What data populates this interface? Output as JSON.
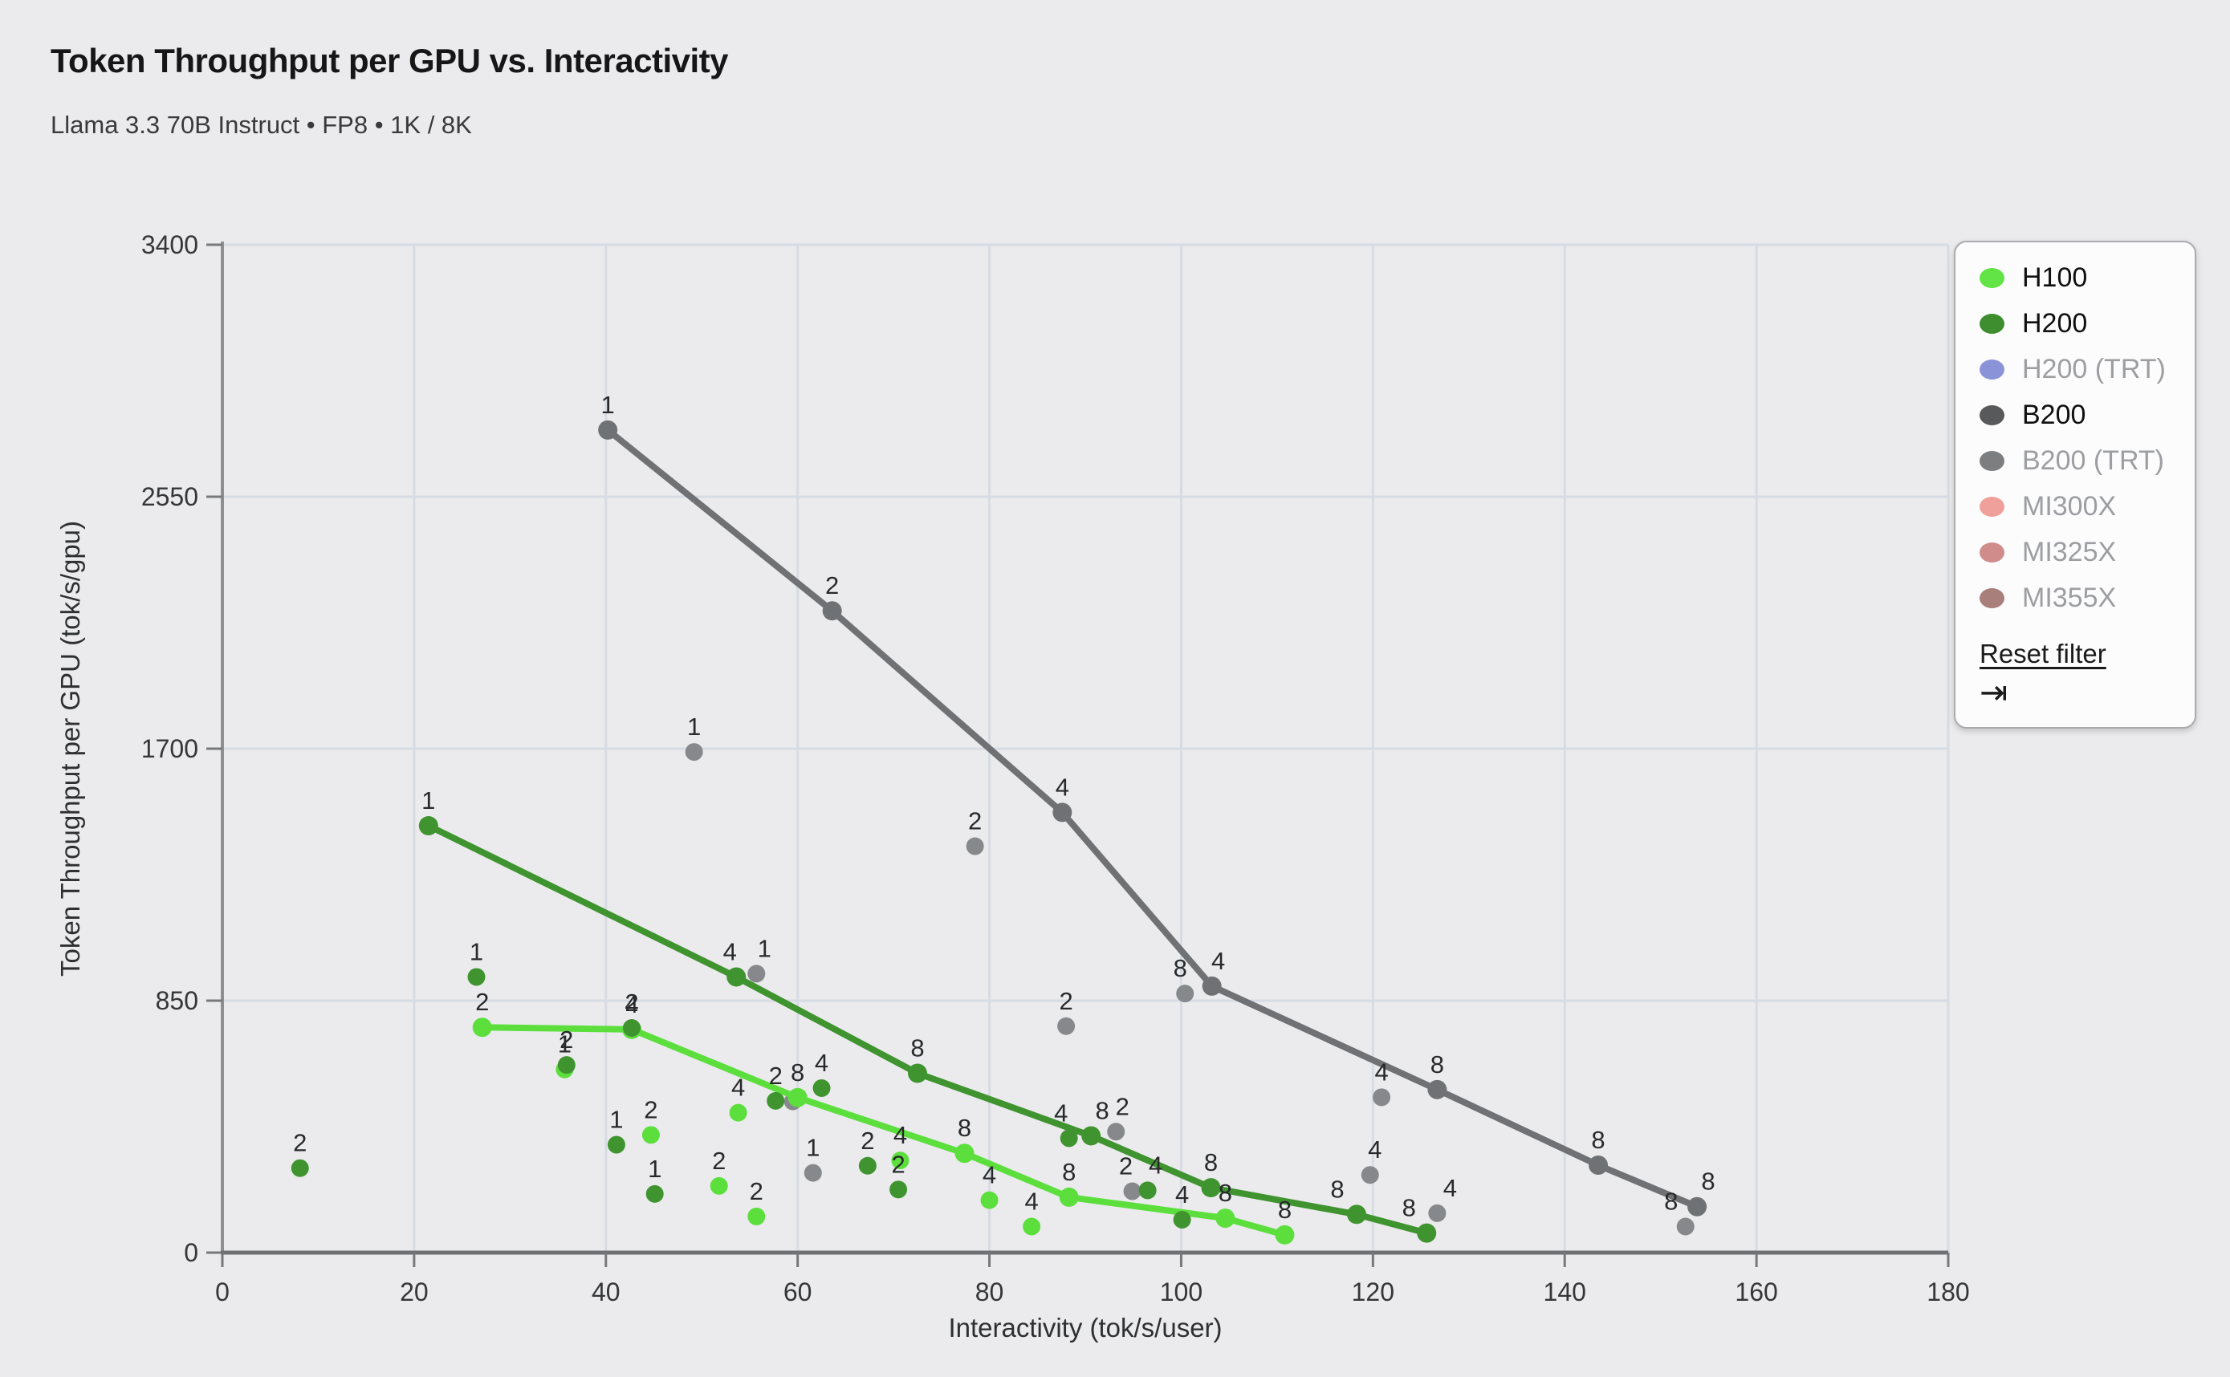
{
  "page": {
    "title": "Token Throughput per GPU vs. Interactivity",
    "subtitle": "Llama 3.3 70B Instruct • FP8 • 1K / 8K"
  },
  "legend": {
    "items": [
      {
        "label": "H100",
        "color": "#62e447",
        "active": true
      },
      {
        "label": "H200",
        "color": "#3e8e2f",
        "active": true
      },
      {
        "label": "H200 (TRT)",
        "color": "#8b93d8",
        "active": false
      },
      {
        "label": "B200",
        "color": "#58595b",
        "active": true
      },
      {
        "label": "B200 (TRT)",
        "color": "#7d7e80",
        "active": false
      },
      {
        "label": "MI300X",
        "color": "#f0a09b",
        "active": false
      },
      {
        "label": "MI325X",
        "color": "#d08c8a",
        "active": false
      },
      {
        "label": "MI355X",
        "color": "#a97f7c",
        "active": false
      }
    ],
    "reset_label": "Reset filter",
    "collapse_icon": "⇥"
  },
  "chart_data": {
    "type": "scatter",
    "title": "Token Throughput per GPU vs. Interactivity",
    "xlabel": "Interactivity (tok/s/user)",
    "ylabel": "Token Throughput per GPU (tok/s/gpu)",
    "xlim": [
      0,
      180
    ],
    "ylim": [
      0,
      3400
    ],
    "xticks": [
      0,
      20,
      40,
      60,
      80,
      100,
      120,
      140,
      160,
      180
    ],
    "yticks": [
      0,
      850,
      1700,
      2550,
      3400
    ],
    "grid": true,
    "legend_position": "top-right",
    "point_format": "[interactivity_tok_s_user, throughput_tok_s_gpu, tp_label, label_dx_px]",
    "series": [
      {
        "name": "B200",
        "line_color": "#707174",
        "scatter_color": "#87888b",
        "line": [
          [
            40.2,
            2775,
            "1",
            0
          ],
          [
            63.6,
            2165,
            "2",
            0
          ],
          [
            87.6,
            1485,
            "4",
            0
          ],
          [
            103.2,
            899,
            "4",
            8
          ],
          [
            126.7,
            550,
            "8",
            0
          ],
          [
            143.5,
            295,
            "8",
            0
          ],
          [
            153.8,
            155,
            "8",
            14
          ]
        ],
        "scatter": [
          [
            49.2,
            1689,
            "1",
            0
          ],
          [
            55.7,
            941,
            "1",
            10
          ],
          [
            59.5,
            510,
            "",
            0
          ],
          [
            61.6,
            269,
            "1",
            0
          ],
          [
            78.5,
            1371,
            "2",
            0
          ],
          [
            88.0,
            764,
            "2",
            0
          ],
          [
            93.2,
            408,
            "2",
            8
          ],
          [
            94.9,
            207,
            "2",
            -8
          ],
          [
            100.4,
            874,
            "8",
            -6
          ],
          [
            119.7,
            262,
            "4",
            6
          ],
          [
            120.9,
            524,
            "4",
            0
          ],
          [
            126.7,
            133,
            "4",
            16
          ],
          [
            152.6,
            88,
            "8",
            -18
          ]
        ]
      },
      {
        "name": "H100",
        "line_color": "#5cdf3d",
        "scatter_color": "#5cdf3d",
        "line": [
          [
            27.1,
            760,
            "2",
            0
          ],
          [
            42.7,
            753,
            "4",
            0
          ],
          [
            60.0,
            523,
            "8",
            0
          ],
          [
            77.4,
            335,
            "8",
            0
          ],
          [
            88.3,
            187,
            "8",
            0
          ],
          [
            104.6,
            116,
            "8",
            0
          ],
          [
            110.8,
            60,
            "8",
            0
          ]
        ],
        "scatter": [
          [
            35.7,
            618,
            "1",
            0
          ],
          [
            44.7,
            397,
            "2",
            0
          ],
          [
            51.8,
            225,
            "2",
            0
          ],
          [
            53.8,
            472,
            "4",
            0
          ],
          [
            55.7,
            122,
            "2",
            0
          ],
          [
            70.7,
            311,
            "4",
            0
          ],
          [
            80.0,
            177,
            "4",
            0
          ],
          [
            84.4,
            88,
            "4",
            0
          ]
        ]
      },
      {
        "name": "H200",
        "line_color": "#3f9430",
        "scatter_color": "#3f9430",
        "line": [
          [
            21.5,
            1440,
            "1",
            0
          ],
          [
            53.6,
            930,
            "4",
            -8
          ],
          [
            72.5,
            605,
            "8",
            0
          ],
          [
            90.6,
            394,
            "8",
            14
          ],
          [
            103.1,
            219,
            "8",
            0
          ],
          [
            118.3,
            129,
            "8",
            -24
          ],
          [
            125.6,
            66,
            "8",
            -22
          ]
        ],
        "scatter": [
          [
            8.1,
            285,
            "2",
            0
          ],
          [
            26.5,
            930,
            "1",
            0
          ],
          [
            35.9,
            633,
            "2",
            0
          ],
          [
            41.1,
            364,
            "1",
            0
          ],
          [
            42.7,
            758,
            "2",
            0
          ],
          [
            45.1,
            198,
            "1",
            0
          ],
          [
            57.7,
            512,
            "2",
            0
          ],
          [
            62.5,
            555,
            "4",
            0
          ],
          [
            67.3,
            293,
            "2",
            0
          ],
          [
            70.5,
            213,
            "2",
            0
          ],
          [
            88.3,
            386,
            "4",
            -10
          ],
          [
            96.5,
            210,
            "4",
            10
          ],
          [
            100.1,
            111,
            "4",
            0
          ]
        ]
      }
    ]
  },
  "colors": {
    "background": "#ebebed",
    "grid": "#d7dbe3",
    "axis_y": "#8e8f93",
    "axis_x": "#6f7074",
    "tick": "#77787b",
    "tick_text": "#353639",
    "point_label": "#27292b"
  }
}
